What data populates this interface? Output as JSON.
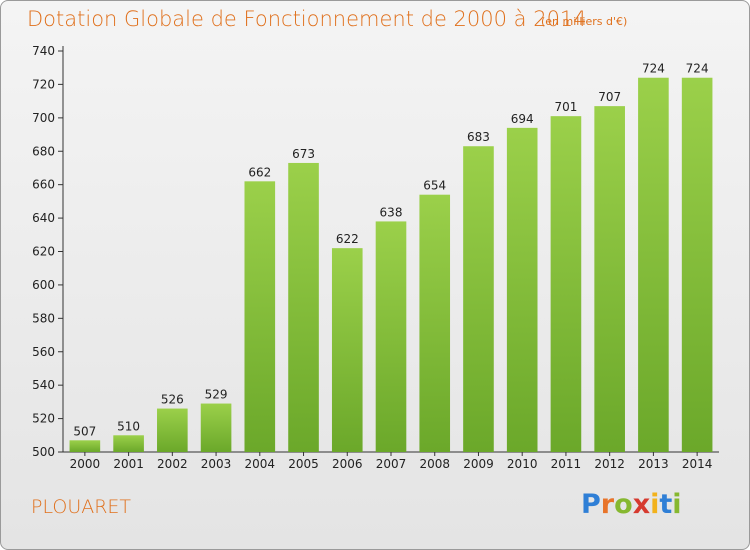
{
  "title": "Dotation Globale de Fonctionnement de 2000 à 2014",
  "unit": "(en milliers d'€)",
  "commune": "PLOUARET",
  "logo": {
    "letters": [
      "P",
      "r",
      "o",
      "x",
      "i",
      "t",
      "i"
    ],
    "colors": [
      "#2f7fd6",
      "#e8742a",
      "#86b830",
      "#d63a2f",
      "#f2b21c",
      "#2f7fd6",
      "#86b830"
    ]
  },
  "colors": {
    "accent": "#e0701c",
    "bar_top": "#9bd04a",
    "bar_bottom": "#6ba82a"
  },
  "chart_data": {
    "type": "bar",
    "categories": [
      "2000",
      "2001",
      "2002",
      "2003",
      "2004",
      "2005",
      "2006",
      "2007",
      "2008",
      "2009",
      "2010",
      "2011",
      "2012",
      "2013",
      "2014"
    ],
    "values": [
      507,
      510,
      526,
      529,
      662,
      673,
      622,
      638,
      654,
      683,
      694,
      701,
      707,
      724,
      724
    ],
    "ylim": [
      500,
      740
    ],
    "yticks": [
      500,
      520,
      540,
      560,
      580,
      600,
      620,
      640,
      660,
      680,
      700,
      720,
      740
    ],
    "grid": false,
    "legend": "none"
  }
}
